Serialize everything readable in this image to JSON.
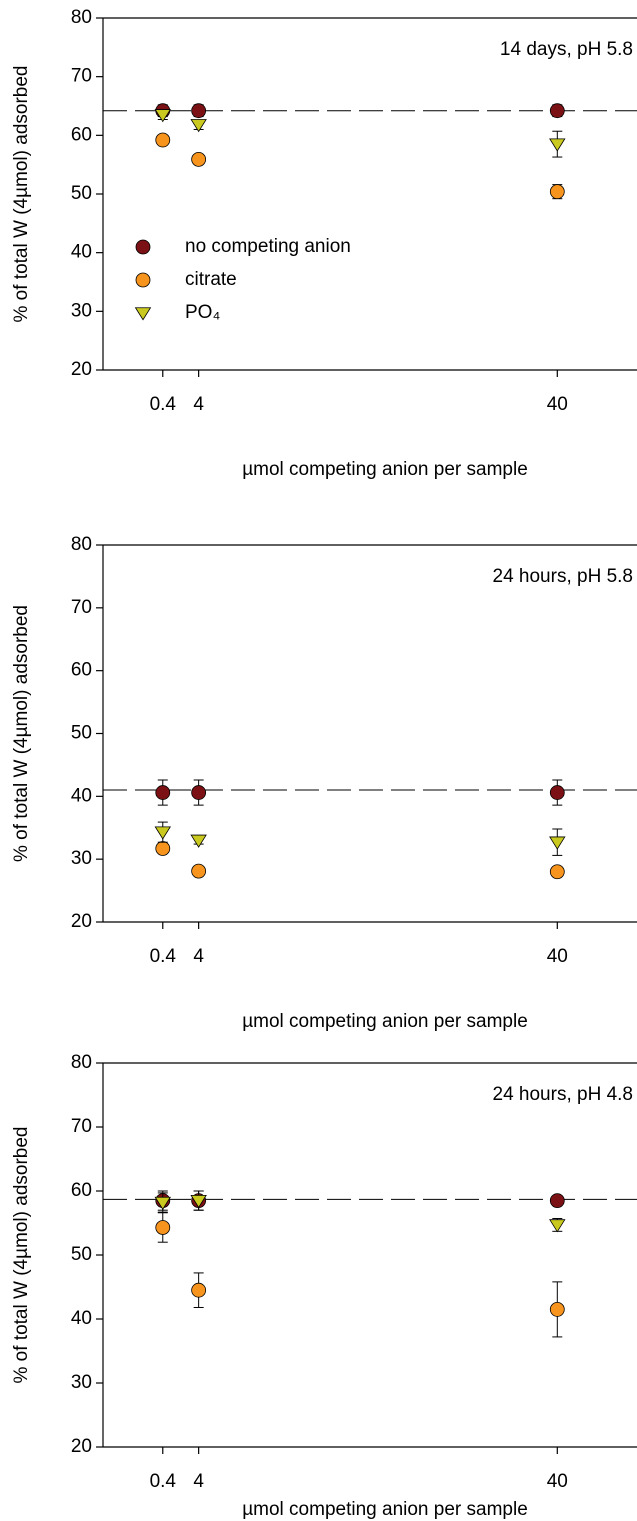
{
  "chart_data": [
    {
      "type": "scatter",
      "annotation": "14 days, pH 5.8",
      "y_label": "% of total W (4µmol) adsorbed",
      "x_label": "µmol competing anion per sample",
      "x": [
        0.4,
        4,
        40
      ],
      "xlim": [
        -5.6,
        48
      ],
      "xticks": [
        0.4,
        4,
        40
      ],
      "ylim": [
        20,
        80
      ],
      "yticks": [
        20,
        30,
        40,
        50,
        60,
        70,
        80
      ],
      "reference_line": 64.2,
      "legend": "upper left",
      "series": [
        {
          "name": "no competing anion",
          "color": "#7b1114",
          "marker": "circle",
          "values": [
            64.2,
            64.2,
            64.2
          ],
          "errors": [
            1.0,
            1.0,
            1.0
          ]
        },
        {
          "name": "citrate",
          "color": "#f7941d",
          "marker": "circle",
          "values": [
            59.2,
            55.9,
            50.4
          ],
          "errors": [
            0.5,
            0.6,
            1.2
          ]
        },
        {
          "name": "PO₄",
          "color": "#c9c91f",
          "marker": "triangle",
          "values": [
            63.5,
            61.8,
            58.5
          ],
          "errors": [
            0.8,
            0.8,
            2.2
          ]
        }
      ]
    },
    {
      "type": "scatter",
      "annotation": "24 hours, pH 5.8",
      "y_label": "% of total W (4µmol) adsorbed",
      "x_label": "µmol competing anion per sample",
      "x": [
        0.4,
        4,
        40
      ],
      "xlim": [
        -5.6,
        48
      ],
      "xticks": [
        0.4,
        4,
        40
      ],
      "ylim": [
        20,
        80
      ],
      "yticks": [
        20,
        30,
        40,
        50,
        60,
        70,
        80
      ],
      "reference_line": 41.0,
      "series": [
        {
          "color": "#7b1114",
          "marker": "circle",
          "values": [
            40.6,
            40.6,
            40.6
          ],
          "errors": [
            2.0,
            2.0,
            2.0
          ]
        },
        {
          "color": "#f7941d",
          "marker": "circle",
          "values": [
            31.7,
            28.1,
            28.0
          ],
          "errors": [
            0.5,
            0.5,
            0.5
          ]
        },
        {
          "color": "#c9c91f",
          "marker": "triangle",
          "values": [
            34.3,
            33.0,
            32.7
          ],
          "errors": [
            1.6,
            0.6,
            2.1
          ]
        }
      ]
    },
    {
      "type": "scatter",
      "annotation": "24 hours, pH 4.8",
      "y_label": "% of total W (4µmol) adsorbed",
      "x_label": "µmol competing anion per sample",
      "x": [
        0.4,
        4,
        40
      ],
      "xlim": [
        -5.6,
        48
      ],
      "xticks": [
        0.4,
        4,
        40
      ],
      "ylim": [
        20,
        80
      ],
      "yticks": [
        20,
        30,
        40,
        50,
        60,
        70,
        80
      ],
      "reference_line": 58.7,
      "series": [
        {
          "color": "#7b1114",
          "marker": "circle",
          "values": [
            58.5,
            58.5,
            58.5
          ],
          "errors": [
            1.5,
            1.5,
            0.5
          ]
        },
        {
          "color": "#f7941d",
          "marker": "circle",
          "values": [
            54.3,
            44.5,
            41.5
          ],
          "errors": [
            2.3,
            2.7,
            4.3
          ]
        },
        {
          "color": "#c9c91f",
          "marker": "triangle",
          "values": [
            58.2,
            58.5,
            54.7
          ],
          "errors": [
            1.5,
            1.5,
            1.0
          ]
        }
      ]
    }
  ]
}
